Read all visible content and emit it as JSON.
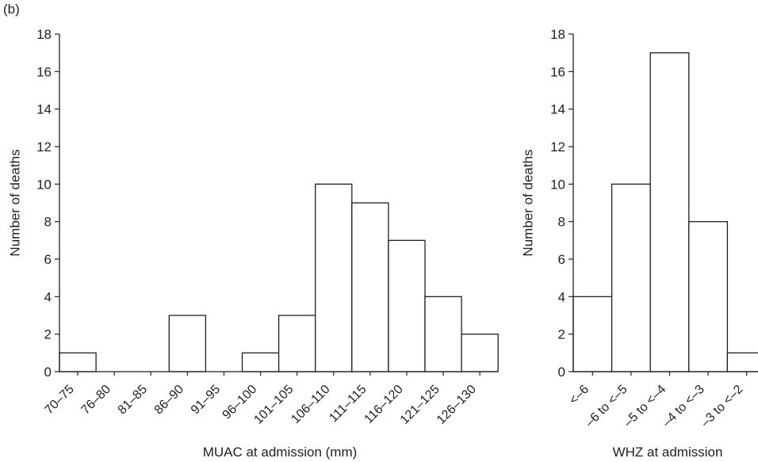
{
  "panel_label": "(b)",
  "chart_data": [
    {
      "type": "bar",
      "title": "",
      "xlabel": "MUAC at admission (mm)",
      "ylabel": "Number of deaths",
      "categories": [
        "70–75",
        "76–80",
        "81–85",
        "86–90",
        "91–95",
        "96–100",
        "101–105",
        "106–110",
        "111–115",
        "116–120",
        "121–125",
        "126–130"
      ],
      "values": [
        1,
        0,
        0,
        3,
        0,
        1,
        3,
        10,
        9,
        7,
        4,
        2
      ],
      "ylim": [
        0,
        18
      ],
      "yticks": [
        "0",
        "2",
        "4",
        "6",
        "8",
        "10",
        "12",
        "14",
        "16",
        "18"
      ],
      "grid": false,
      "bar_fill": "#ffffff",
      "bar_stroke": "#231f20"
    },
    {
      "type": "bar",
      "title": "",
      "xlabel": "WHZ at admission",
      "ylabel": "Number of deaths",
      "categories": [
        "<–6",
        "–6 to <–5",
        "–5 to <–4",
        "–4 to <–3",
        "–3 to <–2"
      ],
      "values": [
        4,
        10,
        17,
        8,
        1
      ],
      "ylim": [
        0,
        18
      ],
      "yticks": [
        "0",
        "2",
        "4",
        "6",
        "8",
        "10",
        "12",
        "14",
        "16",
        "18"
      ],
      "grid": false,
      "bar_fill": "#ffffff",
      "bar_stroke": "#231f20"
    }
  ]
}
